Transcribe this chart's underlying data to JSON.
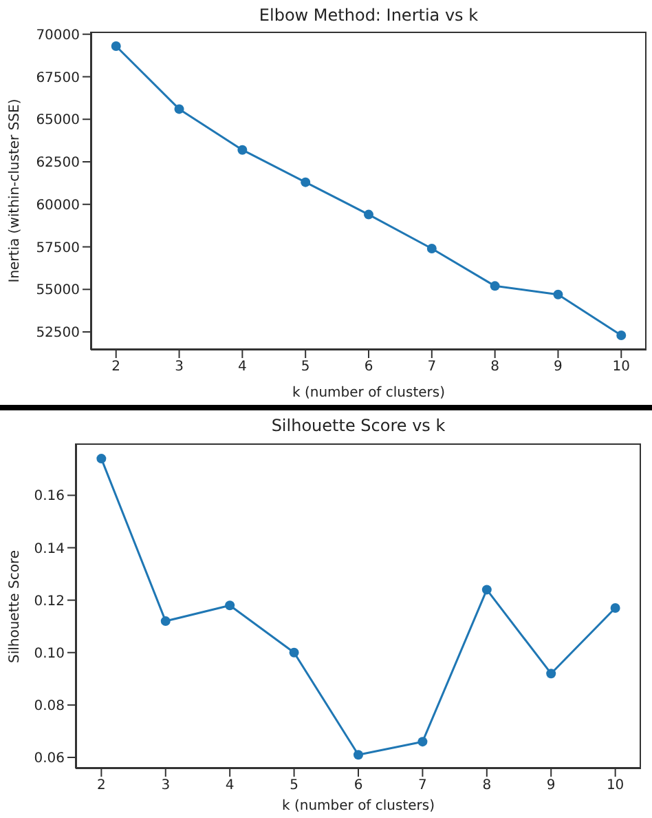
{
  "chart_data": [
    {
      "type": "line",
      "title": "Elbow Method: Inertia vs k",
      "xlabel": "k (number of clusters)",
      "ylabel": "Inertia (within-cluster SSE)",
      "x": [
        2,
        3,
        4,
        5,
        6,
        7,
        8,
        9,
        10
      ],
      "marker": "circle",
      "series": [
        {
          "color": "#1f77b4",
          "values": [
            69300,
            65600,
            63200,
            61300,
            59400,
            57400,
            55200,
            54700,
            52300
          ]
        }
      ],
      "xlim": [
        1.6,
        10.4
      ],
      "xticks": [
        2,
        3,
        4,
        5,
        6,
        7,
        8,
        9,
        10
      ],
      "ylim": [
        51450,
        70150
      ],
      "yticks": [
        52500,
        55000,
        57500,
        60000,
        62500,
        65000,
        67500,
        70000
      ]
    },
    {
      "type": "line",
      "title": "Silhouette Score vs k",
      "xlabel": "k (number of clusters)",
      "ylabel": "Silhouette Score",
      "x": [
        2,
        3,
        4,
        5,
        6,
        7,
        8,
        9,
        10
      ],
      "marker": "circle",
      "series": [
        {
          "color": "#1f77b4",
          "values": [
            0.174,
            0.112,
            0.118,
            0.1,
            0.061,
            0.066,
            0.124,
            0.092,
            0.117
          ]
        }
      ],
      "xlim": [
        1.6,
        10.4
      ],
      "xticks": [
        2,
        3,
        4,
        5,
        6,
        7,
        8,
        9,
        10
      ],
      "ylim": [
        0.0558,
        0.1798
      ],
      "yticks": [
        0.06,
        0.08,
        {
          "value": 0.1,
          "label": "0.10"
        },
        0.12,
        0.14,
        0.16
      ]
    }
  ]
}
